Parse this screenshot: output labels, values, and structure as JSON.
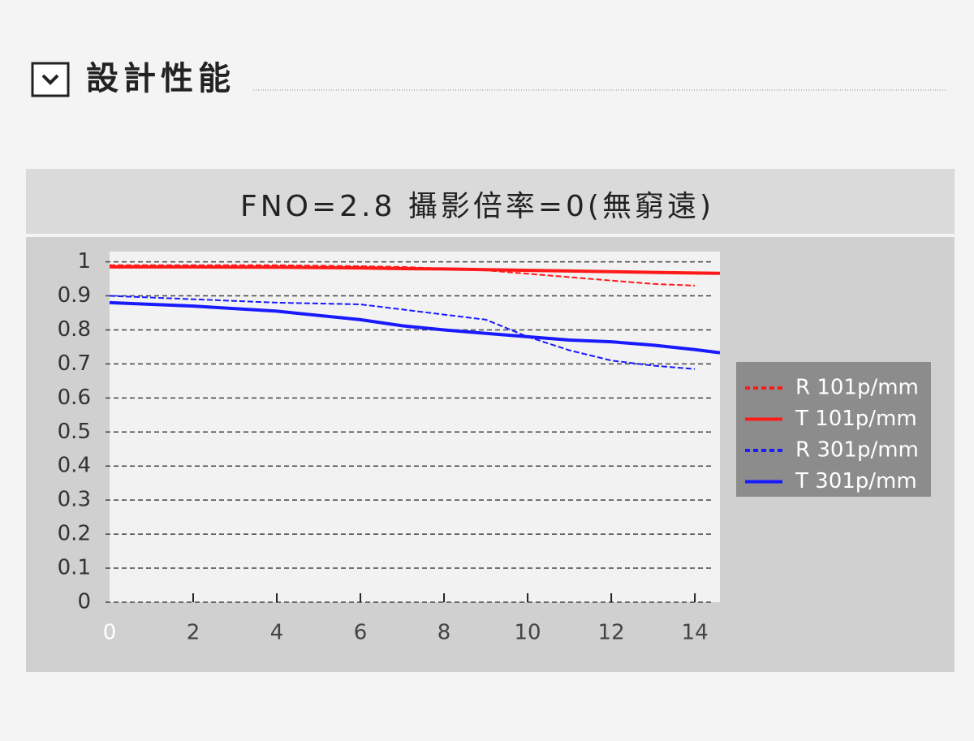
{
  "header": {
    "title": "設計性能"
  },
  "chart_data": {
    "type": "line",
    "title": "FNO=2.8 攝影倍率=0(無窮遠)",
    "xlim": [
      0,
      14.6
    ],
    "ylim": [
      0,
      1.03
    ],
    "xticks": [
      0,
      2,
      4,
      6,
      8,
      10,
      12,
      14
    ],
    "yticks": [
      0,
      0.1,
      0.2,
      0.3,
      0.4,
      0.5,
      0.6,
      0.7,
      0.8,
      0.9,
      1
    ],
    "grid": true,
    "legend": "right",
    "series": [
      {
        "name": "R 101p/mm",
        "color": "#ff1a1a",
        "style": "dashed",
        "x": [
          0,
          2,
          4,
          6,
          7,
          8,
          9,
          10,
          11,
          12,
          13,
          14
        ],
        "values": [
          0.99,
          0.99,
          0.99,
          0.987,
          0.985,
          0.98,
          0.975,
          0.965,
          0.955,
          0.945,
          0.935,
          0.93
        ]
      },
      {
        "name": "T 101p/mm",
        "color": "#ff1a1a",
        "style": "solid",
        "x": [
          0,
          2,
          4,
          6,
          7,
          8,
          9,
          10,
          11,
          12,
          13,
          14,
          14.6
        ],
        "values": [
          0.985,
          0.985,
          0.984,
          0.982,
          0.98,
          0.979,
          0.977,
          0.975,
          0.973,
          0.971,
          0.969,
          0.967,
          0.966
        ]
      },
      {
        "name": "R 301p/mm",
        "color": "#1a1aff",
        "style": "dashed",
        "x": [
          0,
          2,
          4,
          6,
          7,
          8,
          9,
          10,
          11,
          12,
          13,
          14
        ],
        "values": [
          0.9,
          0.89,
          0.88,
          0.875,
          0.86,
          0.845,
          0.83,
          0.78,
          0.74,
          0.71,
          0.695,
          0.685
        ]
      },
      {
        "name": "T 301p/mm",
        "color": "#1a1aff",
        "style": "solid",
        "x": [
          0,
          2,
          4,
          6,
          7,
          8,
          9,
          10,
          11,
          12,
          13,
          14,
          14.6
        ],
        "values": [
          0.88,
          0.87,
          0.855,
          0.83,
          0.812,
          0.8,
          0.79,
          0.78,
          0.77,
          0.765,
          0.755,
          0.742,
          0.733
        ]
      }
    ]
  }
}
